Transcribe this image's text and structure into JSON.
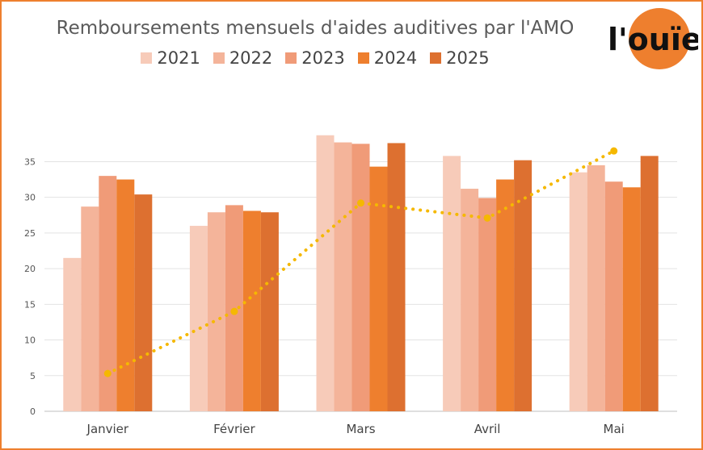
{
  "chart_data": {
    "type": "bar",
    "title": "Remboursements mensuels d'aides auditives par l'AMO",
    "categories": [
      "Janvier",
      "Février",
      "Mars",
      "Avril",
      "Mai"
    ],
    "series": [
      {
        "name": "2021",
        "color": "#f7cbb9",
        "values": [
          21.5,
          26.0,
          38.7,
          35.8,
          33.5
        ]
      },
      {
        "name": "2022",
        "color": "#f4b49a",
        "values": [
          28.7,
          27.9,
          37.7,
          31.2,
          34.5
        ]
      },
      {
        "name": "2023",
        "color": "#f09b78",
        "values": [
          33.0,
          28.9,
          37.5,
          29.9,
          32.2
        ]
      },
      {
        "name": "2024",
        "color": "#ee7f2e",
        "values": [
          32.5,
          28.1,
          34.3,
          32.5,
          31.4
        ]
      },
      {
        "name": "2025",
        "color": "#dd7030",
        "values": [
          30.4,
          27.9,
          37.6,
          35.2,
          35.8
        ]
      }
    ],
    "trend": {
      "color": "#f5b800",
      "values": [
        5.3,
        14.0,
        29.2,
        27.1,
        36.5
      ]
    },
    "yticks": [
      "0",
      "5",
      "10",
      "15",
      "20",
      "25",
      "30",
      "35"
    ],
    "ylim": [
      0,
      45
    ],
    "grid": true,
    "legend_position": "top"
  },
  "logo": {
    "text": "l'ouïe",
    "color": "#ee7f2e"
  }
}
